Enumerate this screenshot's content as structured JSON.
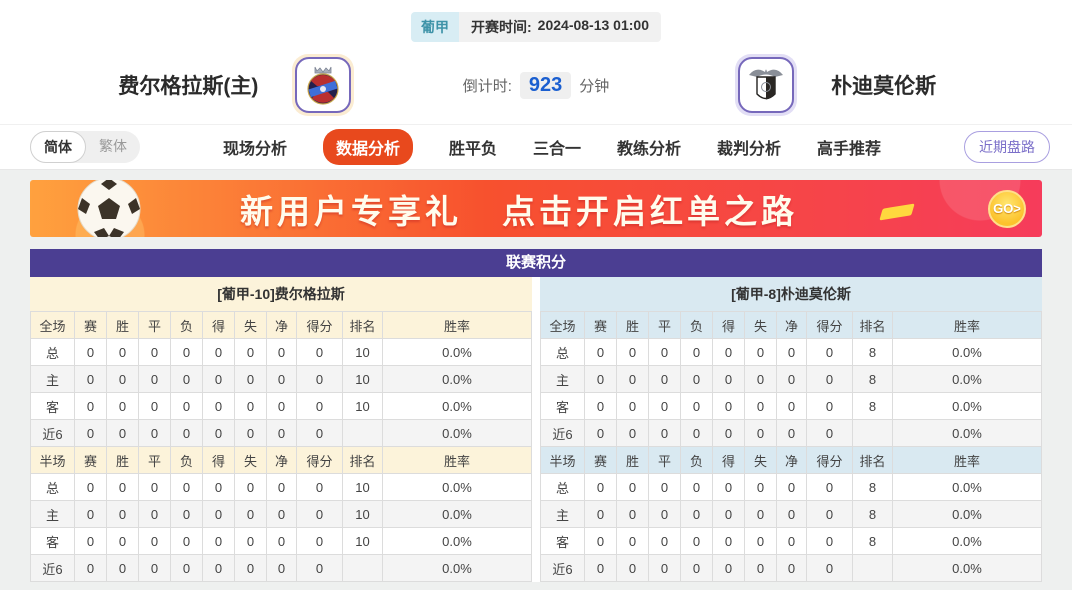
{
  "meta": {
    "league": "葡甲",
    "kickoff_label": "开赛时间:",
    "kickoff_time": "2024-08-13 01:00",
    "countdown_label": "倒计时:",
    "countdown_value": "923",
    "countdown_unit": "分钟"
  },
  "teams": {
    "home": {
      "name": "费尔格拉斯(主)"
    },
    "away": {
      "name": "朴迪莫伦斯"
    }
  },
  "lang_toggle": {
    "simplified": "简体",
    "traditional": "繁体"
  },
  "nav": {
    "tabs": [
      {
        "label": "现场分析",
        "active": false
      },
      {
        "label": "数据分析",
        "active": true
      },
      {
        "label": "胜平负",
        "active": false
      },
      {
        "label": "三合一",
        "active": false
      },
      {
        "label": "教练分析",
        "active": false
      },
      {
        "label": "裁判分析",
        "active": false
      },
      {
        "label": "高手推荐",
        "active": false
      }
    ],
    "recent_odds_button": "近期盘路"
  },
  "banner": {
    "title_left": "新用户专享礼",
    "title_right": "点击开启红单之路",
    "go_label": "GO>"
  },
  "standings": {
    "title": "联赛积分",
    "stat_columns": [
      "赛",
      "胜",
      "平",
      "负",
      "得",
      "失",
      "净",
      "得分",
      "排名",
      "胜率"
    ],
    "sections": [
      {
        "key": "full",
        "first_col": "全场"
      },
      {
        "key": "half",
        "first_col": "半场"
      }
    ],
    "sides": [
      {
        "id": "home",
        "header": "[葡甲-10]费尔格拉斯",
        "full": [
          {
            "label": "总",
            "type": "total",
            "cells": [
              "0",
              "0",
              "0",
              "0",
              "0",
              "0",
              "0",
              "0",
              "10",
              "0.0%"
            ]
          },
          {
            "label": "主",
            "type": "home",
            "cells": [
              "0",
              "0",
              "0",
              "0",
              "0",
              "0",
              "0",
              "0",
              "10",
              "0.0%"
            ]
          },
          {
            "label": "客",
            "type": "away",
            "cells": [
              "0",
              "0",
              "0",
              "0",
              "0",
              "0",
              "0",
              "0",
              "10",
              "0.0%"
            ]
          },
          {
            "label": "近6",
            "type": "recent",
            "cells": [
              "0",
              "0",
              "0",
              "0",
              "0",
              "0",
              "0",
              "0",
              "",
              "0.0%"
            ]
          }
        ],
        "half": [
          {
            "label": "总",
            "type": "total",
            "cells": [
              "0",
              "0",
              "0",
              "0",
              "0",
              "0",
              "0",
              "0",
              "10",
              "0.0%"
            ]
          },
          {
            "label": "主",
            "type": "home",
            "cells": [
              "0",
              "0",
              "0",
              "0",
              "0",
              "0",
              "0",
              "0",
              "10",
              "0.0%"
            ]
          },
          {
            "label": "客",
            "type": "away",
            "cells": [
              "0",
              "0",
              "0",
              "0",
              "0",
              "0",
              "0",
              "0",
              "10",
              "0.0%"
            ]
          },
          {
            "label": "近6",
            "type": "recent",
            "cells": [
              "0",
              "0",
              "0",
              "0",
              "0",
              "0",
              "0",
              "0",
              "",
              "0.0%"
            ]
          }
        ]
      },
      {
        "id": "away",
        "header": "[葡甲-8]朴迪莫伦斯",
        "full": [
          {
            "label": "总",
            "type": "total",
            "cells": [
              "0",
              "0",
              "0",
              "0",
              "0",
              "0",
              "0",
              "0",
              "8",
              "0.0%"
            ]
          },
          {
            "label": "主",
            "type": "home",
            "cells": [
              "0",
              "0",
              "0",
              "0",
              "0",
              "0",
              "0",
              "0",
              "8",
              "0.0%"
            ]
          },
          {
            "label": "客",
            "type": "away",
            "cells": [
              "0",
              "0",
              "0",
              "0",
              "0",
              "0",
              "0",
              "0",
              "8",
              "0.0%"
            ]
          },
          {
            "label": "近6",
            "type": "recent",
            "cells": [
              "0",
              "0",
              "0",
              "0",
              "0",
              "0",
              "0",
              "0",
              "",
              "0.0%"
            ]
          }
        ],
        "half": [
          {
            "label": "总",
            "type": "total",
            "cells": [
              "0",
              "0",
              "0",
              "0",
              "0",
              "0",
              "0",
              "0",
              "8",
              "0.0%"
            ]
          },
          {
            "label": "主",
            "type": "home",
            "cells": [
              "0",
              "0",
              "0",
              "0",
              "0",
              "0",
              "0",
              "0",
              "8",
              "0.0%"
            ]
          },
          {
            "label": "客",
            "type": "away",
            "cells": [
              "0",
              "0",
              "0",
              "0",
              "0",
              "0",
              "0",
              "0",
              "8",
              "0.0%"
            ]
          },
          {
            "label": "近6",
            "type": "recent",
            "cells": [
              "0",
              "0",
              "0",
              "0",
              "0",
              "0",
              "0",
              "0",
              "",
              "0.0%"
            ]
          }
        ]
      }
    ]
  },
  "colors": {
    "accent_purple": "#4b3e92",
    "active_tab_orange": "#e8491d",
    "home_panel_cream": "#fcf3da",
    "away_panel_blue": "#d9e9f1",
    "home_label_red": "#cc2222",
    "away_label_blue": "#2244cc",
    "countdown_blue": "#1b5fd0",
    "league_badge_teal": "#3e93a8",
    "banner_gradient": [
      "#ffa13e",
      "#f7512e",
      "#f63c5b"
    ]
  }
}
